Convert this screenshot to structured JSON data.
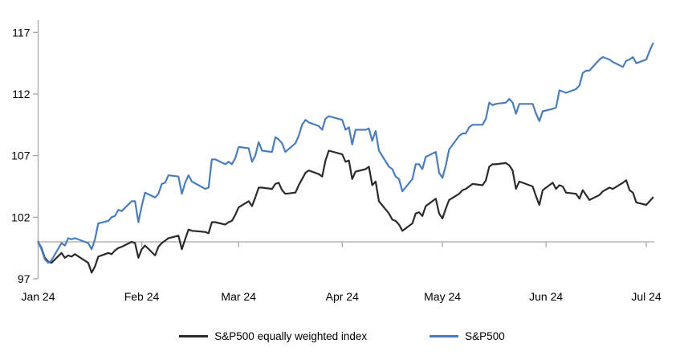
{
  "chart_data": {
    "type": "line",
    "title": "",
    "x_tick_labels": [
      "Jan 24",
      "Feb 24",
      "Mar 24",
      "Apr 24",
      "May 24",
      "Jun 24",
      "Jul 24"
    ],
    "y_ticks": [
      97,
      102,
      107,
      112,
      117
    ],
    "ylim": [
      97,
      118
    ],
    "baseline_value": 100,
    "grid": "off",
    "legend_position": "bottom-center",
    "axis_color": "#A6A6A6",
    "text_color": "#000000",
    "dates": [
      "1/1",
      "1/2",
      "1/3",
      "1/4",
      "1/5",
      "1/8",
      "1/9",
      "1/10",
      "1/11",
      "1/12",
      "1/16",
      "1/17",
      "1/18",
      "1/19",
      "1/22",
      "1/23",
      "1/24",
      "1/25",
      "1/26",
      "1/29",
      "1/30",
      "1/31",
      "2/1",
      "2/2",
      "2/5",
      "2/6",
      "2/7",
      "2/8",
      "2/9",
      "2/12",
      "2/13",
      "2/14",
      "2/15",
      "2/16",
      "2/20",
      "2/21",
      "2/22",
      "2/23",
      "2/26",
      "2/27",
      "2/28",
      "2/29",
      "3/1",
      "3/4",
      "3/5",
      "3/6",
      "3/7",
      "3/8",
      "3/11",
      "3/12",
      "3/13",
      "3/14",
      "3/15",
      "3/18",
      "3/19",
      "3/20",
      "3/21",
      "3/22",
      "3/25",
      "3/26",
      "3/27",
      "3/28",
      "4/1",
      "4/2",
      "4/3",
      "4/4",
      "4/5",
      "4/8",
      "4/9",
      "4/10",
      "4/11",
      "4/12",
      "4/15",
      "4/16",
      "4/17",
      "4/18",
      "4/19",
      "4/22",
      "4/23",
      "4/24",
      "4/25",
      "4/26",
      "4/29",
      "4/30",
      "5/1",
      "5/2",
      "5/3",
      "5/6",
      "5/7",
      "5/8",
      "5/9",
      "5/10",
      "5/13",
      "5/14",
      "5/15",
      "5/16",
      "5/17",
      "5/20",
      "5/21",
      "5/22",
      "5/23",
      "5/24",
      "5/28",
      "5/29",
      "5/30",
      "5/31",
      "6/3",
      "6/4",
      "6/5",
      "6/6",
      "6/7",
      "6/10",
      "6/11",
      "6/12",
      "6/13",
      "6/14",
      "6/17",
      "6/18",
      "6/20",
      "6/21",
      "6/24",
      "6/25",
      "6/26",
      "6/27",
      "6/28",
      "7/1",
      "7/2",
      "7/3"
    ],
    "series": [
      {
        "name": "S&P500 equally weighted index",
        "color": "#2B2B2B",
        "values": [
          100.0,
          99.5,
          98.7,
          98.4,
          98.3,
          99.1,
          98.7,
          98.9,
          98.8,
          99.0,
          98.3,
          97.5,
          98.0,
          98.8,
          99.1,
          99.0,
          99.3,
          99.5,
          99.6,
          100.0,
          99.9,
          98.7,
          99.4,
          99.7,
          98.9,
          99.6,
          99.9,
          100.1,
          100.3,
          100.5,
          99.4,
          100.2,
          101.0,
          100.9,
          100.8,
          100.7,
          101.6,
          101.6,
          101.4,
          101.6,
          101.7,
          102.2,
          102.8,
          103.3,
          102.9,
          103.6,
          104.4,
          104.4,
          104.3,
          104.7,
          104.8,
          104.2,
          103.9,
          104.0,
          104.6,
          105.1,
          105.6,
          105.8,
          105.5,
          105.3,
          106.6,
          107.4,
          107.1,
          106.5,
          106.6,
          105.1,
          105.7,
          105.9,
          106.1,
          104.6,
          104.9,
          103.3,
          102.3,
          101.8,
          101.7,
          101.4,
          100.9,
          101.5,
          102.3,
          102.4,
          102.1,
          102.9,
          103.5,
          102.3,
          101.9,
          102.7,
          103.4,
          103.9,
          104.2,
          104.3,
          104.5,
          104.7,
          104.6,
          105.0,
          106.1,
          106.3,
          106.3,
          106.4,
          106.2,
          105.8,
          104.3,
          104.9,
          104.5,
          103.7,
          103.0,
          104.2,
          104.8,
          104.3,
          104.6,
          104.5,
          104.0,
          103.9,
          103.5,
          104.2,
          103.8,
          103.4,
          103.8,
          104.1,
          104.4,
          104.3,
          104.8,
          105.0,
          104.2,
          104.0,
          103.2,
          103.0,
          103.3,
          103.6
        ]
      },
      {
        "name": "S&P500",
        "color": "#4A7EBB",
        "values": [
          100.0,
          99.4,
          98.6,
          98.3,
          98.5,
          99.9,
          99.7,
          100.3,
          100.2,
          100.3,
          99.9,
          99.4,
          100.2,
          101.5,
          101.7,
          102.0,
          102.1,
          102.6,
          102.5,
          103.3,
          103.3,
          101.6,
          102.9,
          104.0,
          103.6,
          103.9,
          104.7,
          104.8,
          105.4,
          105.3,
          103.9,
          104.8,
          105.4,
          104.9,
          104.3,
          104.4,
          106.7,
          106.7,
          106.3,
          106.5,
          106.3,
          106.8,
          107.7,
          107.6,
          106.5,
          107.0,
          108.1,
          107.4,
          107.3,
          108.5,
          108.3,
          108.0,
          107.3,
          108.0,
          108.6,
          109.5,
          109.9,
          109.7,
          109.4,
          109.1,
          110.0,
          110.2,
          109.9,
          109.1,
          109.3,
          107.9,
          109.1,
          109.1,
          109.2,
          108.2,
          109.0,
          107.4,
          106.1,
          105.9,
          105.3,
          105.1,
          104.1,
          105.1,
          106.3,
          106.3,
          105.9,
          106.9,
          107.3,
          105.6,
          105.2,
          106.2,
          107.5,
          108.6,
          108.8,
          108.8,
          109.3,
          109.5,
          109.5,
          110.0,
          111.3,
          111.1,
          111.2,
          111.3,
          111.6,
          111.3,
          110.4,
          111.2,
          111.2,
          110.4,
          109.8,
          110.6,
          110.8,
          110.9,
          112.3,
          112.2,
          112.1,
          112.4,
          112.7,
          113.7,
          113.9,
          113.9,
          114.8,
          115.0,
          114.8,
          114.6,
          114.2,
          114.7,
          114.8,
          115.0,
          114.5,
          114.8,
          115.5,
          116.1
        ]
      }
    ]
  }
}
